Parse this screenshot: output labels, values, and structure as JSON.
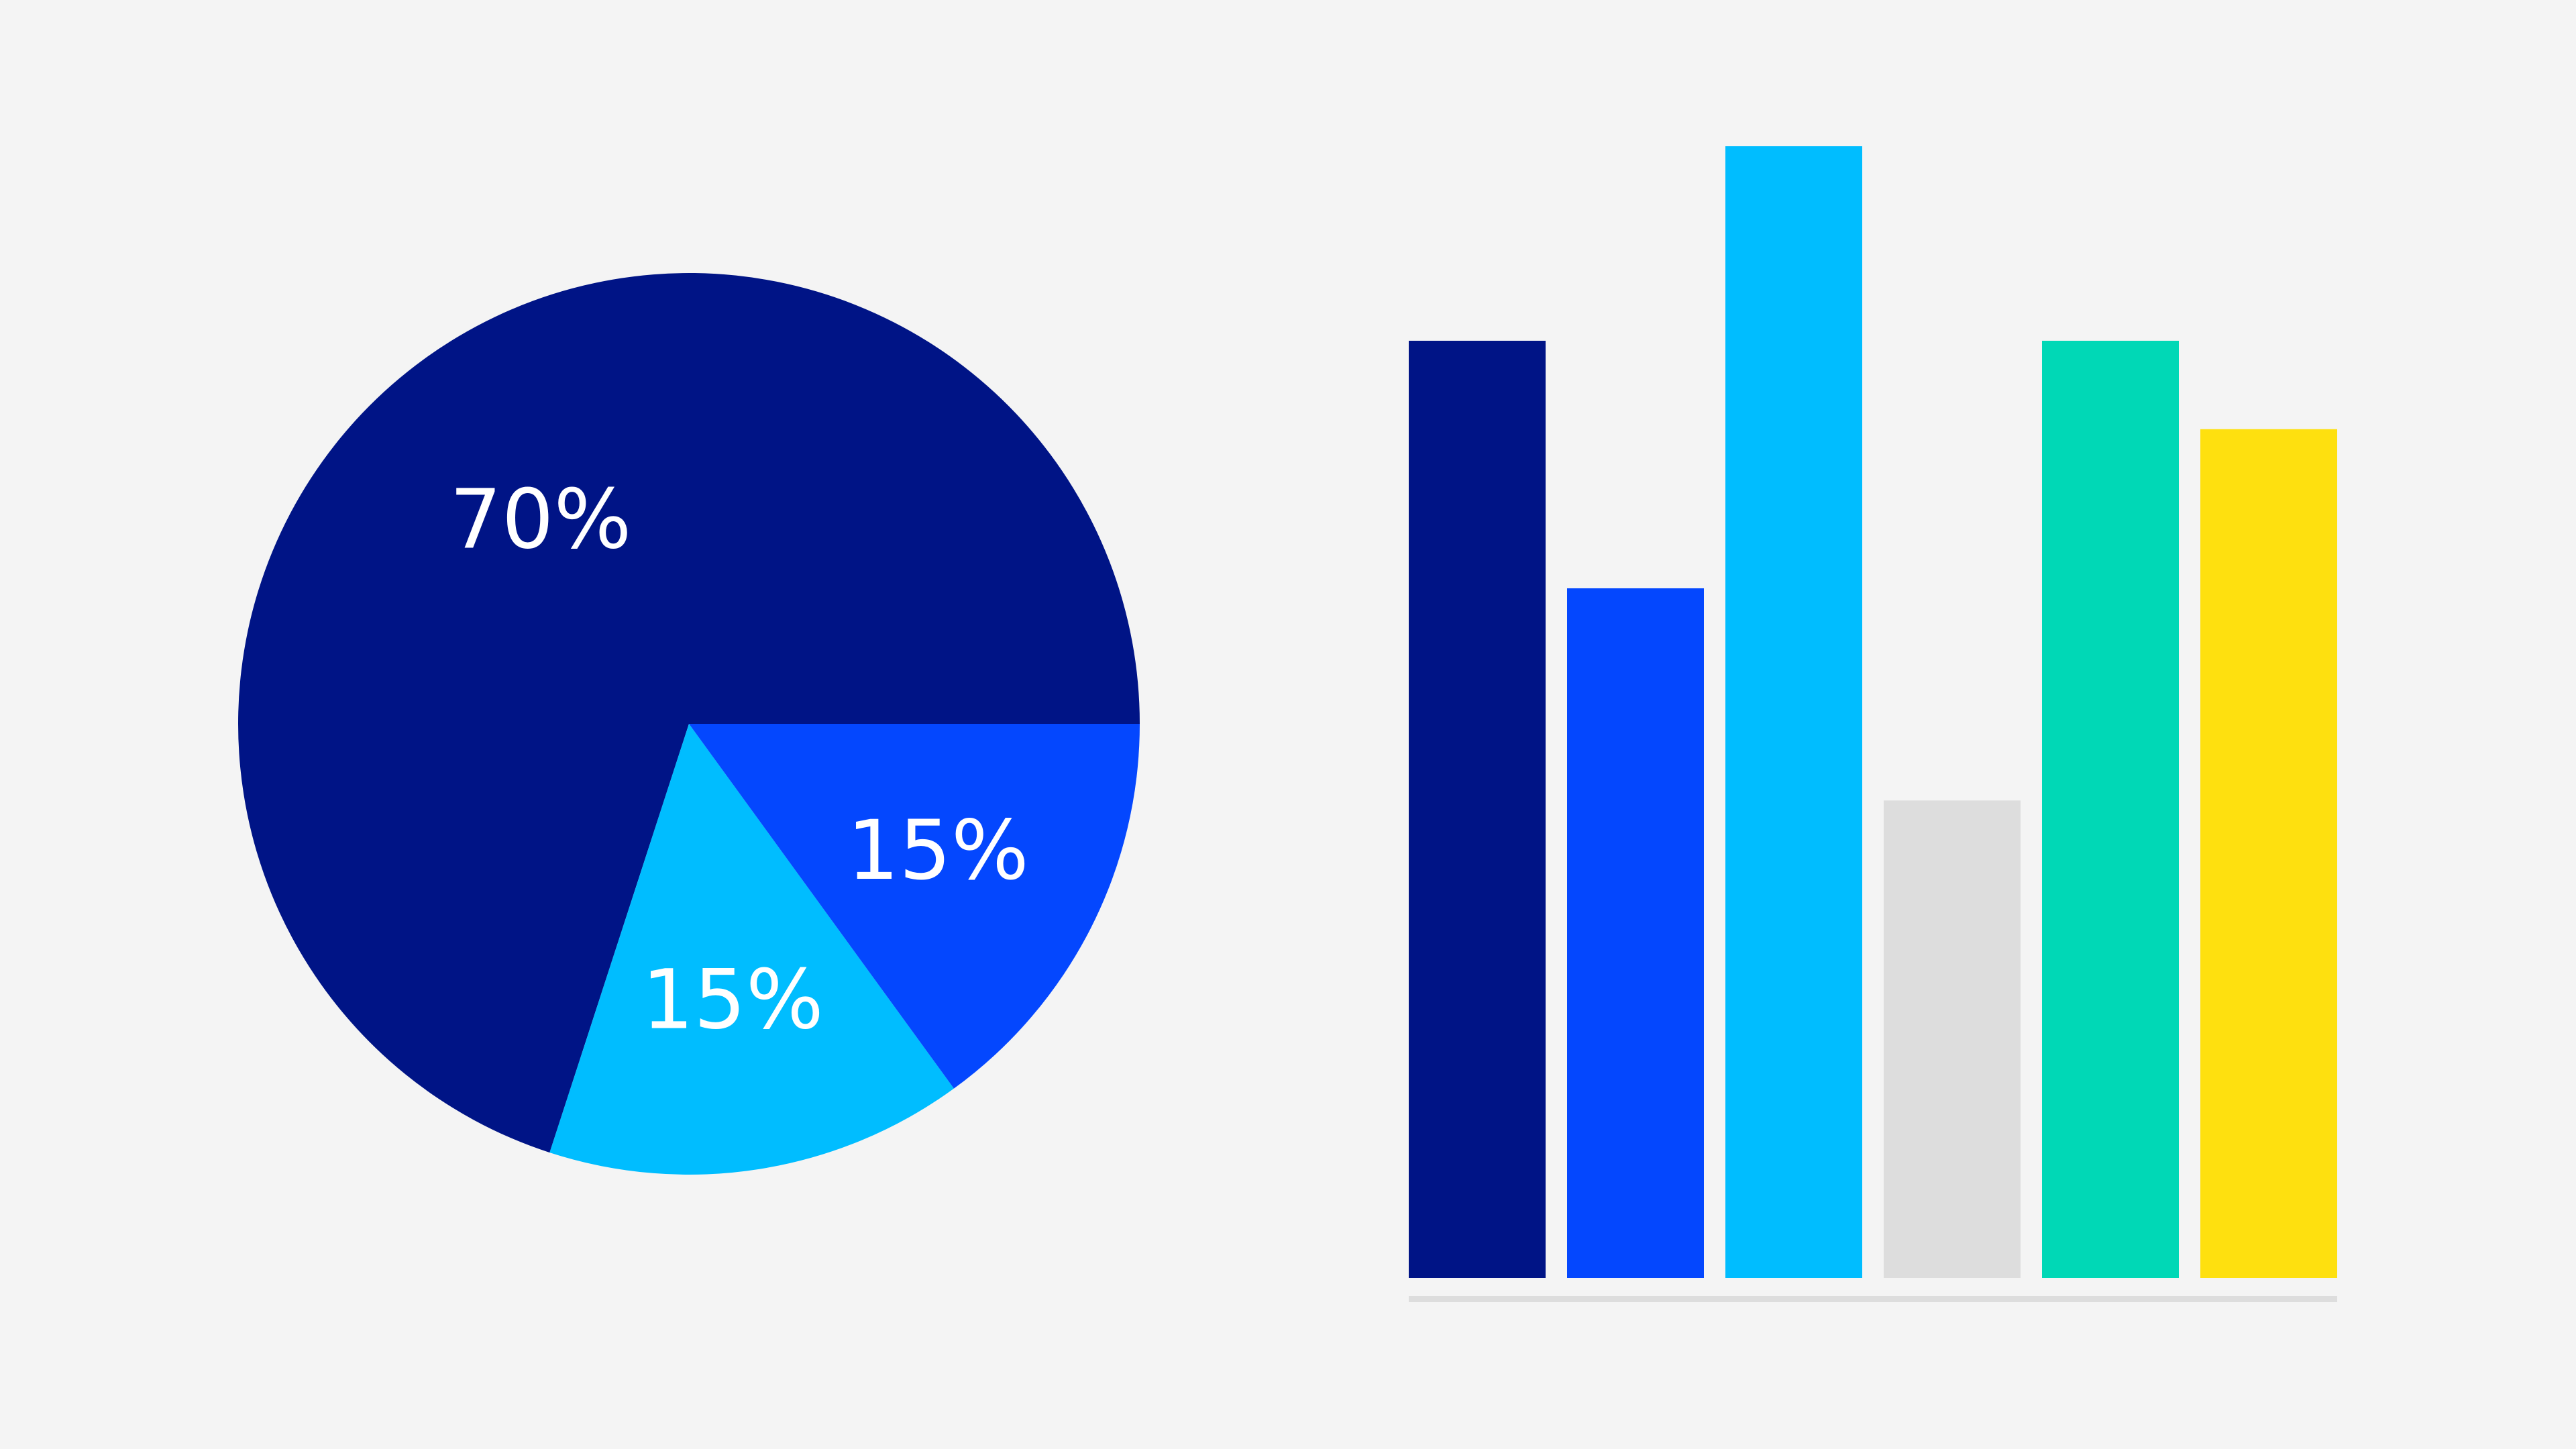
{
  "chart_data": [
    {
      "type": "pie",
      "slices": [
        {
          "label": "70%",
          "value": 70,
          "color": "#001486"
        },
        {
          "label": "15%",
          "value": 15,
          "color": "#00bdff"
        },
        {
          "label": "15%",
          "value": 15,
          "color": "#0447fe"
        }
      ]
    },
    {
      "type": "bar",
      "values": [
        53,
        39,
        64,
        27,
        53,
        48
      ],
      "colors": [
        "#001486",
        "#0447fe",
        "#00bdff",
        "#dddddd",
        "#00d8b6",
        "#fee00f"
      ],
      "axis_color": "#dddddd"
    }
  ]
}
